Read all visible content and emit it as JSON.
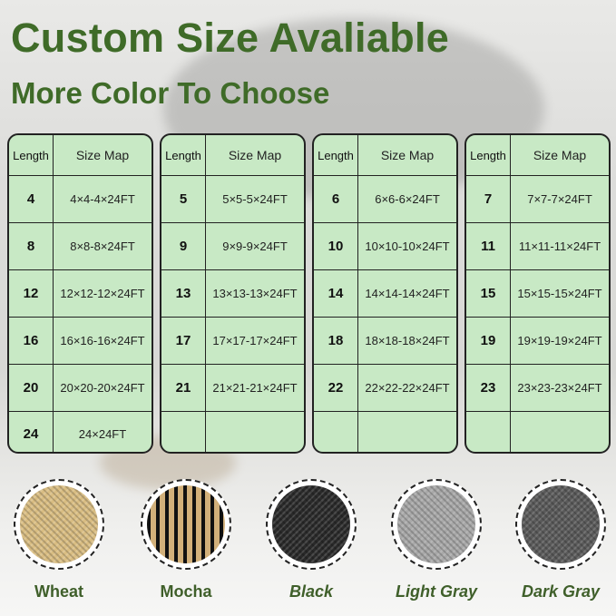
{
  "title": "Custom Size Avaliable",
  "subtitle": "More Color To Choose",
  "header": {
    "length": "Length",
    "size_map": "Size Map"
  },
  "tables": [
    {
      "rows": [
        [
          "4",
          "4×4-4×24FT"
        ],
        [
          "8",
          "8×8-8×24FT"
        ],
        [
          "12",
          "12×12-12×24FT"
        ],
        [
          "16",
          "16×16-16×24FT"
        ],
        [
          "20",
          "20×20-20×24FT"
        ],
        [
          "24",
          "24×24FT"
        ]
      ]
    },
    {
      "rows": [
        [
          "5",
          "5×5-5×24FT"
        ],
        [
          "9",
          "9×9-9×24FT"
        ],
        [
          "13",
          "13×13-13×24FT"
        ],
        [
          "17",
          "17×17-17×24FT"
        ],
        [
          "21",
          "21×21-21×24FT"
        ],
        [
          "",
          ""
        ]
      ]
    },
    {
      "rows": [
        [
          "6",
          "6×6-6×24FT"
        ],
        [
          "10",
          "10×10-10×24FT"
        ],
        [
          "14",
          "14×14-14×24FT"
        ],
        [
          "18",
          "18×18-18×24FT"
        ],
        [
          "22",
          "22×22-22×24FT"
        ],
        [
          "",
          ""
        ]
      ]
    },
    {
      "rows": [
        [
          "7",
          "7×7-7×24FT"
        ],
        [
          "11",
          "11×11-11×24FT"
        ],
        [
          "15",
          "15×15-15×24FT"
        ],
        [
          "19",
          "19×19-19×24FT"
        ],
        [
          "23",
          "23×23-23×24FT"
        ],
        [
          "",
          ""
        ]
      ]
    }
  ],
  "colors": [
    {
      "name": "Wheat",
      "swatch": "#d9bd82",
      "italic": false
    },
    {
      "name": "Mocha",
      "swatch": "#8a7450",
      "italic": false
    },
    {
      "name": "Black",
      "swatch": "#2a2a2a",
      "italic": true
    },
    {
      "name": "Light Gray",
      "swatch": "#a8a8a8",
      "italic": true
    },
    {
      "name": "Dark Gray",
      "swatch": "#5a5a5a",
      "italic": true
    }
  ],
  "accent": "#3f6b28"
}
